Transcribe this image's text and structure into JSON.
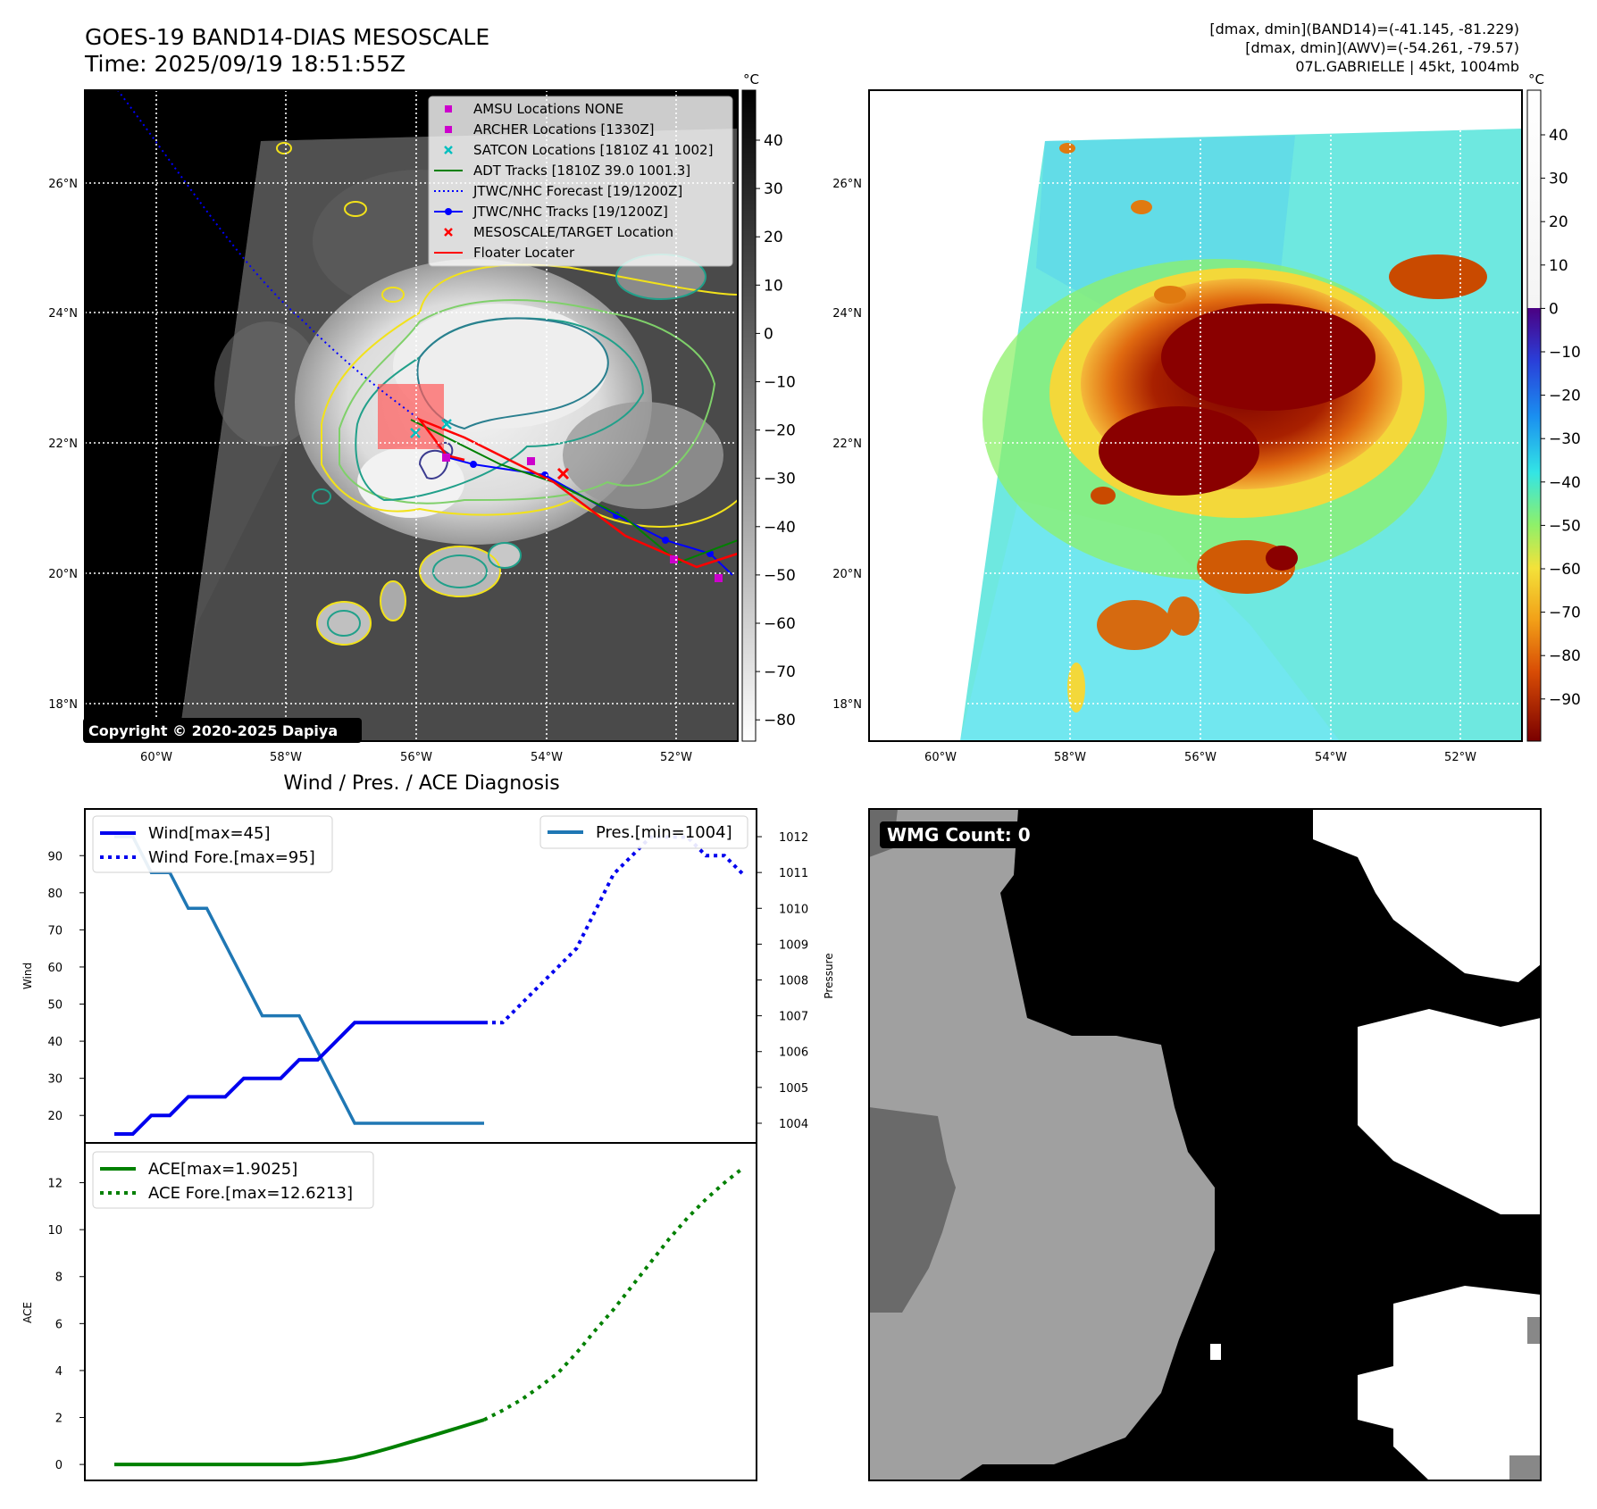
{
  "header": {
    "title_line1": "GOES-19 BAND14-DIAS MESOSCALE",
    "title_line2": "Time: 2025/09/19 18:51:55Z",
    "info_line1": "[dmax, dmin](BAND14)=(-41.145, -81.229)",
    "info_line2": "[dmax, dmin](AWV)=(-54.261, -79.57)",
    "info_line3": "07L.GABRIELLE | 45kt, 1004mb"
  },
  "map_axes": {
    "lat_ticks": [
      "26°N",
      "24°N",
      "22°N",
      "20°N",
      "18°N"
    ],
    "lon_ticks": [
      "60°W",
      "58°W",
      "56°W",
      "54°W",
      "52°W"
    ]
  },
  "ir_colorbar": {
    "unit": "°C",
    "ticks": [
      "40",
      "30",
      "20",
      "10",
      "0",
      "−10",
      "−20",
      "−30",
      "−40",
      "−50",
      "−60",
      "−70",
      "−80"
    ]
  },
  "awv_colorbar": {
    "unit": "°C",
    "ticks": [
      "40",
      "30",
      "20",
      "10",
      "0",
      "−10",
      "−20",
      "−30",
      "−40",
      "−50",
      "−60",
      "−70",
      "−80",
      "−90"
    ]
  },
  "legend": {
    "items": [
      {
        "label": "AMSU Locations NONE",
        "icon": "square-marker",
        "color": "#cc00cc"
      },
      {
        "label": "ARCHER Locations [1330Z]",
        "icon": "square-marker",
        "color": "#cc00cc"
      },
      {
        "label": "SATCON Locations [1810Z 41 1002]",
        "icon": "x-marker",
        "color": "#00bfbf"
      },
      {
        "label": "ADT Tracks [1810Z 39.0 1001.3]",
        "icon": "solid-line",
        "color": "#008000"
      },
      {
        "label": "JTWC/NHC Forecast [19/1200Z]",
        "icon": "dotted-line",
        "color": "#0000ff"
      },
      {
        "label": "JTWC/NHC Tracks [19/1200Z]",
        "icon": "line-dot",
        "color": "#0000ff"
      },
      {
        "label": "MESOSCALE/TARGET Location",
        "icon": "x-marker",
        "color": "#ff0000"
      },
      {
        "label": "Floater Locater",
        "icon": "solid-line",
        "color": "#ff0000"
      }
    ]
  },
  "copyright": "Copyright © 2020-2025 Dapiya",
  "wmg": {
    "label": "WMG Count: 0"
  },
  "colors": {
    "wind": "#0000ee",
    "pressure": "#1f77b4",
    "ace": "#008000",
    "ir_contour_yellow": "#f2e21a",
    "ir_contour_teal": "#21a08a",
    "ir_contour_navy": "#3b3b8f"
  },
  "chart_data": [
    {
      "type": "line",
      "title": "Wind / Pres. / ACE Diagnosis",
      "ylabel": "Wind",
      "ylim": [
        15,
        98
      ],
      "yticks": [
        20,
        30,
        40,
        50,
        60,
        70,
        80,
        90
      ],
      "series": [
        {
          "name": "Wind[max=45]",
          "style": "solid",
          "x": [
            0,
            1,
            2,
            3,
            4,
            5,
            6,
            7,
            8,
            9,
            10,
            11,
            12,
            13,
            14,
            15,
            16,
            17,
            18,
            19,
            20
          ],
          "values": [
            15,
            15,
            20,
            20,
            25,
            25,
            25,
            30,
            30,
            30,
            35,
            35,
            40,
            45,
            45,
            45,
            45,
            45,
            45,
            45,
            45
          ]
        },
        {
          "name": "Wind Fore.[max=95]",
          "style": "dotted",
          "x": [
            20,
            21,
            22,
            23,
            24,
            25,
            26,
            27,
            28,
            29,
            30,
            31,
            32,
            33,
            34
          ],
          "values": [
            45,
            45,
            50,
            55,
            60,
            65,
            75,
            85,
            90,
            95,
            95,
            95,
            90,
            90,
            85
          ]
        }
      ],
      "y2": {
        "ylabel": "Pressure",
        "ylim": [
          1003.7,
          1012.3
        ],
        "yticks": [
          1004,
          1005,
          1006,
          1007,
          1008,
          1009,
          1010,
          1011,
          1012
        ],
        "series": [
          {
            "name": "Pres.[min=1004]",
            "style": "solid",
            "x": [
              0,
              1,
              2,
              3,
              4,
              5,
              6,
              7,
              8,
              9,
              10,
              11,
              12,
              13,
              14,
              15,
              16,
              17,
              18,
              19,
              20
            ],
            "values": [
              1012,
              1012,
              1011,
              1011,
              1010,
              1010,
              1009,
              1008,
              1007,
              1007,
              1007,
              1006,
              1005,
              1004,
              1004,
              1004,
              1004,
              1004,
              1004,
              1004,
              1004
            ]
          }
        ]
      }
    },
    {
      "type": "line",
      "ylabel": "ACE",
      "ylim": [
        -0.3,
        13.2
      ],
      "yticks": [
        0,
        2,
        4,
        6,
        8,
        10,
        12
      ],
      "series": [
        {
          "name": "ACE[max=1.9025]",
          "style": "solid",
          "x": [
            0,
            1,
            2,
            3,
            4,
            5,
            6,
            7,
            8,
            9,
            10,
            11,
            12,
            13,
            14,
            15,
            16,
            17,
            18,
            19,
            20
          ],
          "values": [
            0,
            0,
            0,
            0,
            0,
            0,
            0,
            0,
            0,
            0,
            0,
            0.06,
            0.16,
            0.3,
            0.5,
            0.72,
            0.95,
            1.18,
            1.42,
            1.66,
            1.9025
          ]
        },
        {
          "name": "ACE Fore.[max=12.6213]",
          "style": "dotted",
          "x": [
            20,
            21,
            22,
            23,
            24,
            25,
            26,
            27,
            28,
            29,
            30,
            31,
            32,
            33,
            34
          ],
          "values": [
            1.9025,
            2.3,
            2.75,
            3.3,
            3.9,
            4.75,
            5.7,
            6.6,
            7.6,
            8.6,
            9.6,
            10.5,
            11.3,
            12.0,
            12.6213
          ]
        }
      ]
    }
  ]
}
